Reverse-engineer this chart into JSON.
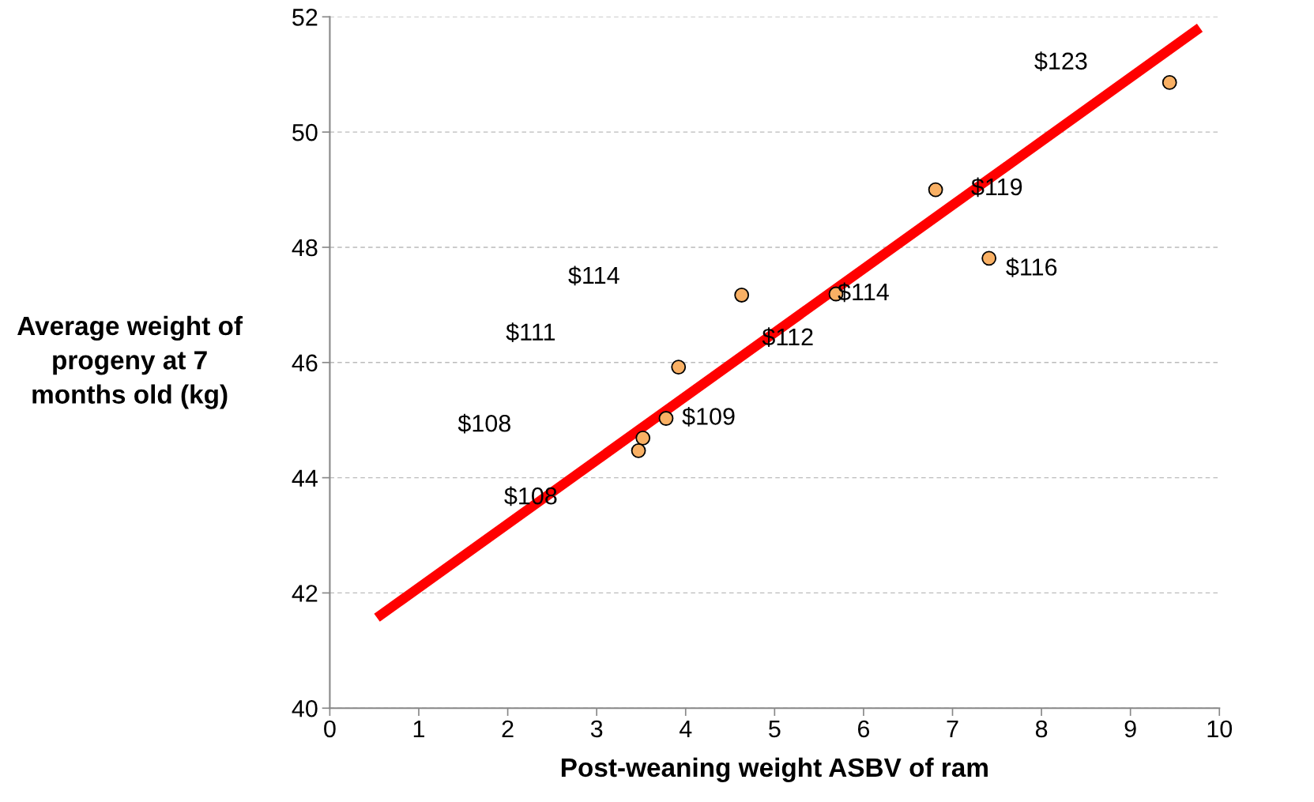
{
  "chart_data": {
    "type": "scatter",
    "xlabel": "Post-weaning weight ASBV of ram",
    "ylabel": "Average weight of\nprogeny at 7\nmonths old (kg)",
    "series": [
      {
        "color": "#f9b064",
        "marker": "circle",
        "x": [
          9.44,
          6.81,
          7.41,
          4.63,
          5.69,
          3.92,
          3.78,
          3.52,
          3.47
        ],
        "values": [
          50.86,
          49.0,
          47.81,
          47.17,
          47.19,
          45.92,
          45.03,
          44.69,
          44.47
        ]
      },
      {
        "type": "line",
        "marker": "none",
        "color": "#ff0000",
        "x": [
          0.53,
          9.78
        ],
        "values": [
          41.57,
          51.81
        ]
      }
    ],
    "annotations": [
      "$123",
      "$119",
      "$116",
      "$114",
      "$114",
      "$111",
      "$112",
      "$108",
      "$109",
      "$108"
    ],
    "xlim": [
      0,
      10
    ],
    "xticks": [
      0,
      1,
      2,
      3,
      4,
      5,
      6,
      7,
      8,
      9,
      10
    ],
    "ylim": [
      40,
      52
    ],
    "yticks": [
      40,
      42,
      44,
      46,
      48,
      50,
      52
    ],
    "grid": "y",
    "legend": false
  }
}
